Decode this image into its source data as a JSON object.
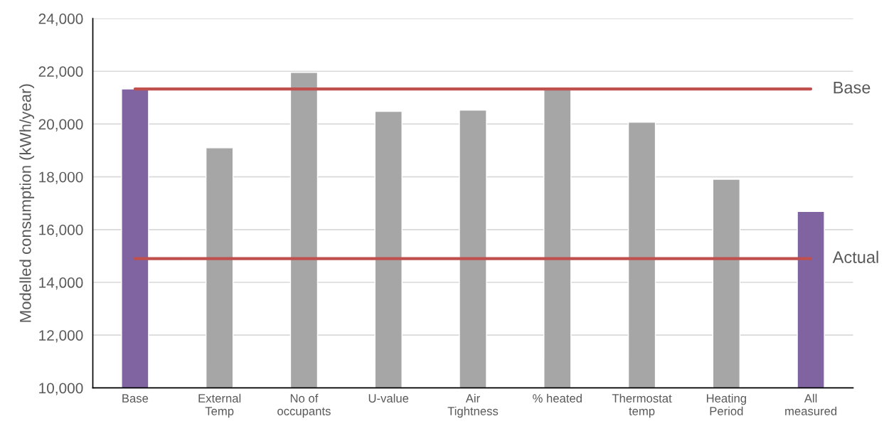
{
  "chart_data": {
    "type": "bar",
    "ylabel": "Modelled consumption (kWh/year)",
    "categories": [
      "Base",
      "External\nTemp",
      "No of\noccupants",
      "U-value",
      "Air\nTightness",
      "% heated",
      "Thermostat\ntemp",
      "Heating\nPeriod",
      "All\nmeasured"
    ],
    "values": [
      21330,
      19100,
      21960,
      20480,
      20530,
      21300,
      20070,
      17910,
      16690
    ],
    "colors": [
      "#8064a2",
      "#a6a6a6",
      "#a6a6a6",
      "#a6a6a6",
      "#a6a6a6",
      "#a6a6a6",
      "#a6a6a6",
      "#a6a6a6",
      "#8064a2"
    ],
    "ylim": [
      10000,
      24000
    ],
    "yticks": [
      {
        "value": 10000,
        "label": "10,000"
      },
      {
        "value": 12000,
        "label": "12,000"
      },
      {
        "value": 14000,
        "label": "14,000"
      },
      {
        "value": 16000,
        "label": "16,000"
      },
      {
        "value": 18000,
        "label": "18,000"
      },
      {
        "value": 20000,
        "label": "20,000"
      },
      {
        "value": 22000,
        "label": "22,000"
      },
      {
        "value": 24000,
        "label": "24,000"
      }
    ],
    "ref_lines": [
      {
        "axis": "y",
        "value": 21330,
        "label": "Base",
        "color": "#c0504d"
      },
      {
        "axis": "y",
        "value": 14900,
        "label": "Actual",
        "color": "#c0504d"
      }
    ],
    "grid": "y",
    "legend": false
  }
}
